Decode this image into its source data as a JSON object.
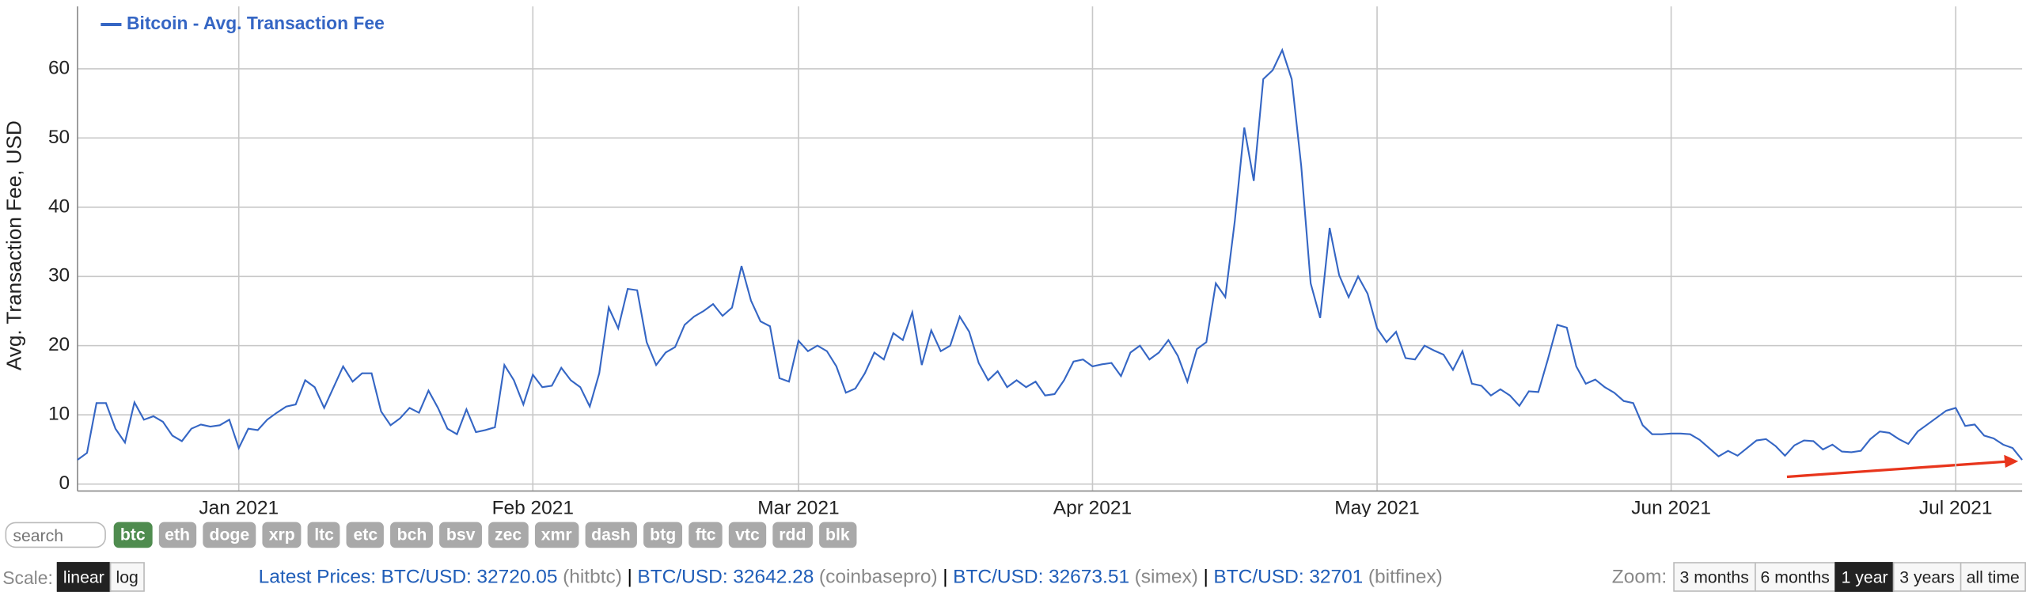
{
  "chart_data": {
    "type": "line",
    "y_label": "Avg. Transaction Fee, USD",
    "categories": [
      null,
      null,
      null,
      null,
      null,
      null,
      null,
      null,
      null,
      null,
      null,
      null,
      null,
      null,
      null,
      null,
      null,
      "Jan 2021",
      null,
      null,
      null,
      null,
      null,
      null,
      null,
      null,
      null,
      null,
      null,
      null,
      null,
      null,
      null,
      null,
      null,
      null,
      null,
      null,
      null,
      null,
      null,
      null,
      null,
      null,
      null,
      null,
      null,
      null,
      "Feb 2021",
      null,
      null,
      null,
      null,
      null,
      null,
      null,
      null,
      null,
      null,
      null,
      null,
      null,
      null,
      null,
      null,
      null,
      null,
      null,
      null,
      null,
      null,
      null,
      null,
      null,
      null,
      null,
      "Mar 2021",
      null,
      null,
      null,
      null,
      null,
      null,
      null,
      null,
      null,
      null,
      null,
      null,
      null,
      null,
      null,
      null,
      null,
      null,
      null,
      null,
      null,
      null,
      null,
      null,
      null,
      null,
      null,
      null,
      null,
      null,
      "Apr 2021",
      null,
      null,
      null,
      null,
      null,
      null,
      null,
      null,
      null,
      null,
      null,
      null,
      null,
      null,
      null,
      null,
      null,
      null,
      null,
      null,
      null,
      null,
      null,
      null,
      null,
      null,
      null,
      null,
      null,
      "May 2021",
      null,
      null,
      null,
      null,
      null,
      null,
      null,
      null,
      null,
      null,
      null,
      null,
      null,
      null,
      null,
      null,
      null,
      null,
      null,
      null,
      null,
      null,
      null,
      null,
      null,
      null,
      null,
      null,
      null,
      null,
      "Jun 2021",
      null,
      null,
      null,
      null,
      null,
      null,
      null,
      null,
      null,
      null,
      null,
      null,
      null,
      null,
      null,
      null,
      null,
      null,
      null,
      null,
      null,
      null,
      null,
      null,
      null,
      null,
      null,
      null,
      null,
      "Jul 2021",
      null,
      null,
      null,
      null,
      null,
      null,
      null
    ],
    "series": [
      {
        "name": "Bitcoin - Avg. Transaction Fee",
        "color": "#3566c4",
        "values": [
          3.5,
          4.5,
          11.7,
          11.7,
          8,
          6,
          11.8,
          9.3,
          9.8,
          9,
          7,
          6.2,
          8,
          8.6,
          8.3,
          8.5,
          9.3,
          5.2,
          8,
          7.8,
          9.3,
          10.3,
          11.2,
          11.5,
          15,
          14,
          11,
          14,
          17,
          14.8,
          16,
          16,
          10.5,
          8.5,
          9.5,
          11,
          10.3,
          13.5,
          11,
          8,
          7.2,
          10.8,
          7.5,
          7.8,
          8.2,
          17.2,
          15,
          11.5,
          15.8,
          14,
          14.2,
          16.8,
          15,
          14,
          11.2,
          16,
          25.5,
          22.5,
          28.2,
          28,
          20.5,
          17.2,
          19,
          19.8,
          23,
          24.2,
          25,
          26,
          24.3,
          25.5,
          31.5,
          26.5,
          23.5,
          22.8,
          15.3,
          14.8,
          20.7,
          19.2,
          20,
          19.2,
          17,
          13.2,
          13.8,
          16,
          19,
          18,
          21.8,
          20.8,
          24.8,
          17.2,
          22.2,
          19.2,
          20,
          24.2,
          22,
          17.5,
          15,
          16.3,
          14,
          15,
          14,
          14.8,
          12.8,
          13,
          15,
          17.7,
          18,
          17,
          17.3,
          17.5,
          15.6,
          19,
          20,
          18,
          19,
          20.8,
          18.5,
          14.8,
          19.5,
          20.5,
          29,
          27,
          38,
          51.5,
          43.8,
          58.5,
          59.8,
          62.7,
          58.5,
          46,
          29,
          24,
          37,
          30.2,
          27,
          30,
          27.5,
          22.5,
          20.5,
          22,
          18.2,
          18,
          20,
          19.3,
          18.7,
          16.5,
          19.2,
          14.5,
          14.2,
          12.8,
          13.7,
          12.8,
          11.3,
          13.4,
          13.3,
          18,
          23,
          22.6,
          17,
          14.5,
          15.1,
          14,
          13.2,
          12,
          11.7,
          8.5,
          7.2,
          7.2,
          7.3,
          7.3,
          7.2,
          6.4,
          5.2,
          4,
          4.8,
          4.1,
          5.2,
          6.3,
          6.5,
          5.5,
          4.1,
          5.6,
          6.3,
          6.2,
          5,
          5.7,
          4.7,
          4.6,
          4.8,
          6.5,
          7.6,
          7.4,
          6.5,
          5.8,
          7.6,
          8.6,
          9.6,
          10.6,
          11,
          8.4,
          8.6,
          7,
          6.6,
          5.7,
          5.2,
          3.5
        ]
      }
    ],
    "ylim": [
      -1,
      69
    ],
    "yticks": [
      0,
      10,
      20,
      30,
      40,
      50,
      60
    ],
    "grid": true,
    "legend": "top-left"
  },
  "controls": {
    "search_placeholder": "search",
    "coins": [
      "btc",
      "eth",
      "doge",
      "xrp",
      "ltc",
      "etc",
      "bch",
      "bsv",
      "zec",
      "xmr",
      "dash",
      "btg",
      "ftc",
      "vtc",
      "rdd",
      "blk"
    ],
    "active_coin": "btc",
    "scale_label": "Scale:",
    "scales": [
      "linear",
      "log"
    ],
    "active_scale": "linear",
    "prices_label": "Latest Prices:",
    "prices": [
      {
        "pair": "BTC/USD:",
        "price": 32720.05,
        "source": "(hitbtc)"
      },
      {
        "pair": "BTC/USD:",
        "price": 32642.28,
        "source": "(coinbasepro)"
      },
      {
        "pair": "BTC/USD:",
        "price": 32673.51,
        "source": "(simex)"
      },
      {
        "pair": "BTC/USD:",
        "price": 32701,
        "source": "(bitfinex)"
      }
    ],
    "zoom_label": "Zoom:",
    "zoom": [
      "3 months",
      "6 months",
      "1 year",
      "3 years",
      "all time"
    ],
    "active_zoom": "1 year"
  }
}
